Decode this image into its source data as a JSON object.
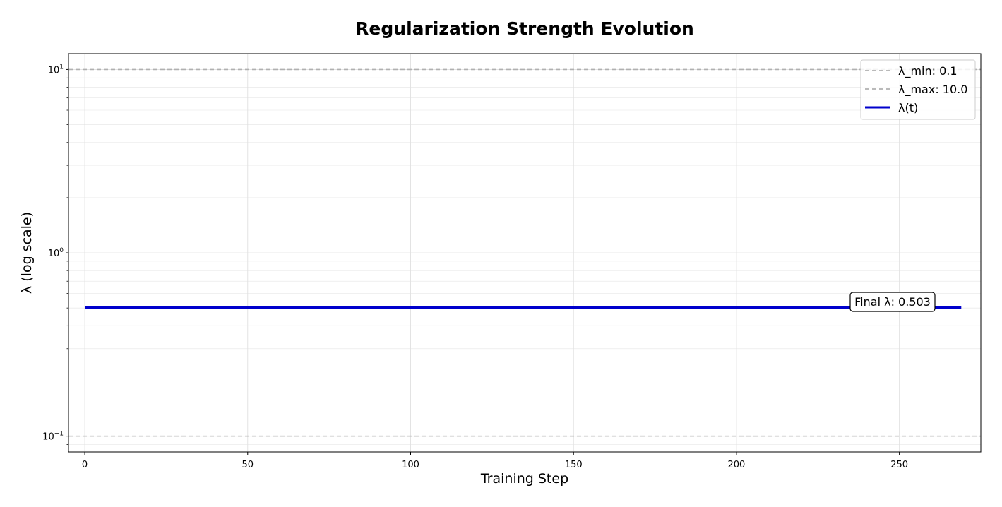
{
  "chart_data": {
    "type": "line",
    "title": "Regularization Strength Evolution",
    "xlabel": "Training Step",
    "ylabel": "λ (log scale)",
    "xlim": [
      -5,
      275
    ],
    "ylim": [
      0.082,
      12.2
    ],
    "y_scale": "log",
    "grid": true,
    "legend_position": "top-right",
    "x_ticks": [
      0,
      50,
      100,
      150,
      200,
      250
    ],
    "y_ticks": [
      {
        "value": 0.1,
        "base": "10",
        "exp": "−1"
      },
      {
        "value": 1,
        "base": "10",
        "exp": "0"
      },
      {
        "value": 10,
        "base": "10",
        "exp": "1"
      }
    ],
    "series": [
      {
        "name": "λ(t)",
        "color": "#0000cc",
        "x": [
          0,
          269
        ],
        "y": [
          0.503,
          0.503
        ]
      }
    ],
    "reference_lines": [
      {
        "name": "λ_min: 0.1",
        "value": 0.1,
        "color": "#b0b0b0",
        "style": "dashed"
      },
      {
        "name": "λ_max: 10.0",
        "value": 10.0,
        "color": "#b0b0b0",
        "style": "dashed"
      }
    ],
    "annotation": {
      "text": "Final λ: 0.503",
      "x": 269,
      "y": 0.503
    }
  }
}
